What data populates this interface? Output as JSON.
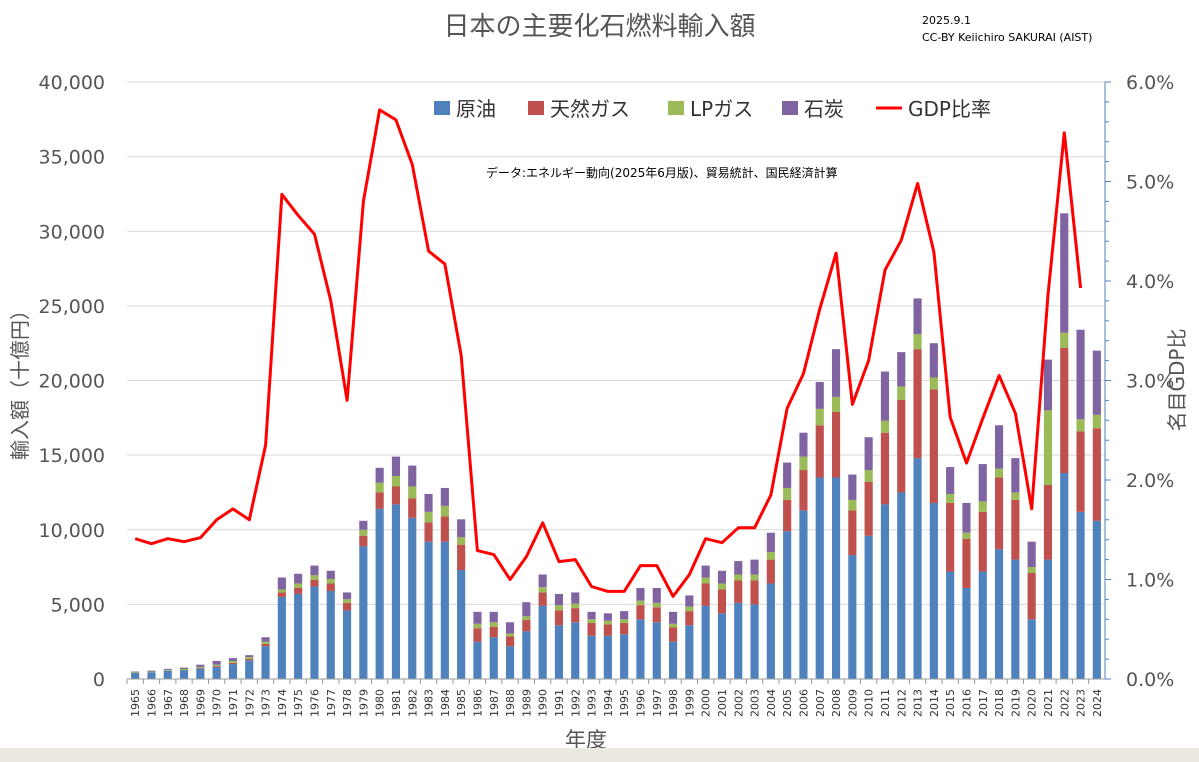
{
  "header": {
    "title": "日本の主要化石燃料輸入額",
    "date": "2025.9.1",
    "license": "CC-BY Keiichiro SAKURAI (AIST)"
  },
  "chart_data": {
    "type": "bar",
    "stacked": true,
    "title": "日本の主要化石燃料輸入額",
    "source_note": "データ:エネルギー動向(2025年6月版)、貿易統計、国民経済計算",
    "xlabel": "年度",
    "ylabel": "輸入額（十億円）",
    "y2label": "名目GDP比",
    "ylim": [
      0,
      40000
    ],
    "y2lim": [
      0,
      6
    ],
    "yticks": [
      "0",
      "5,000",
      "10,000",
      "15,000",
      "20,000",
      "25,000",
      "30,000",
      "35,000",
      "40,000"
    ],
    "y2ticks": [
      "0.0%",
      "1.0%",
      "2.0%",
      "3.0%",
      "4.0%",
      "5.0%",
      "6.0%"
    ],
    "categories": [
      "1965",
      "1966",
      "1967",
      "1968",
      "1969",
      "1970",
      "1971",
      "1972",
      "1973",
      "1974",
      "1975",
      "1976",
      "1977",
      "1978",
      "1979",
      "1980",
      "1981",
      "1982",
      "1983",
      "1984",
      "1985",
      "1986",
      "1987",
      "1988",
      "1989",
      "1990",
      "1991",
      "1992",
      "1993",
      "1994",
      "1995",
      "1996",
      "1997",
      "1998",
      "1999",
      "2000",
      "2001",
      "2002",
      "2003",
      "2004",
      "2005",
      "2006",
      "2007",
      "2008",
      "2009",
      "2010",
      "2011",
      "2012",
      "2013",
      "2014",
      "2015",
      "2016",
      "2017",
      "2018",
      "2019",
      "2020",
      "2021",
      "2022",
      "2023",
      "2024"
    ],
    "series": [
      {
        "name": "原油",
        "type": "bar",
        "color": "#4f81bd",
        "values": [
          400,
          450,
          550,
          600,
          700,
          800,
          1000,
          1250,
          2200,
          5500,
          5700,
          6200,
          5900,
          4600,
          8900,
          11400,
          11700,
          10800,
          9200,
          9200,
          7300,
          2500,
          2800,
          2200,
          3200,
          4900,
          3600,
          3800,
          2900,
          2900,
          3000,
          4000,
          3800,
          2500,
          3600,
          4900,
          4400,
          5100,
          5000,
          6400,
          9900,
          11300,
          13500,
          13500,
          8300,
          9600,
          11700,
          12500,
          14800,
          11800,
          7200,
          6100,
          7200,
          8700,
          8000,
          4000,
          8000,
          13800,
          11200,
          10600
        ]
      },
      {
        "name": "天然ガス",
        "type": "bar",
        "color": "#c0504d",
        "values": [
          0,
          0,
          0,
          0,
          30,
          60,
          80,
          100,
          150,
          300,
          400,
          450,
          500,
          500,
          700,
          1100,
          1200,
          1300,
          1300,
          1700,
          1700,
          900,
          700,
          650,
          750,
          900,
          1000,
          950,
          850,
          750,
          750,
          950,
          1000,
          950,
          950,
          1500,
          1600,
          1500,
          1600,
          1600,
          2100,
          2700,
          3500,
          4400,
          3000,
          3600,
          4800,
          6200,
          7300,
          7600,
          4600,
          3300,
          4000,
          4800,
          4000,
          3100,
          5000,
          8400,
          5400,
          6200
        ]
      },
      {
        "name": "LPガス",
        "type": "bar",
        "color": "#9bbb59",
        "values": [
          50,
          50,
          60,
          70,
          80,
          100,
          120,
          120,
          160,
          200,
          300,
          300,
          300,
          250,
          400,
          650,
          700,
          800,
          700,
          700,
          500,
          300,
          300,
          200,
          250,
          350,
          350,
          300,
          250,
          250,
          250,
          300,
          300,
          250,
          300,
          400,
          400,
          400,
          400,
          500,
          800,
          900,
          1100,
          1000,
          700,
          800,
          800,
          900,
          1000,
          800,
          600,
          400,
          700,
          600,
          500,
          400,
          5000,
          1000,
          800,
          900
        ]
      },
      {
        "name": "石炭",
        "type": "bar",
        "color": "#8064a2",
        "values": [
          50,
          60,
          70,
          90,
          150,
          250,
          200,
          130,
          290,
          800,
          650,
          650,
          550,
          450,
          600,
          1000,
          1300,
          1400,
          1200,
          1200,
          1200,
          800,
          700,
          750,
          950,
          850,
          750,
          750,
          500,
          500,
          550,
          850,
          1000,
          800,
          750,
          800,
          850,
          900,
          1000,
          1300,
          1700,
          1600,
          1800,
          3200,
          1700,
          2200,
          3300,
          2300,
          2400,
          2300,
          1800,
          2000,
          2500,
          2900,
          2300,
          1700,
          3400,
          8000,
          6000,
          4300
        ]
      },
      {
        "name": "GDP比率",
        "type": "line",
        "color": "#ff0000",
        "axis": "secondary",
        "unit": "%",
        "values": [
          1.41,
          1.36,
          1.41,
          1.38,
          1.42,
          1.6,
          1.71,
          1.6,
          2.35,
          4.87,
          4.66,
          4.47,
          3.8,
          2.8,
          4.8,
          5.72,
          5.62,
          5.17,
          4.3,
          4.17,
          3.25,
          1.29,
          1.25,
          1.0,
          1.23,
          1.57,
          1.18,
          1.2,
          0.93,
          0.88,
          0.88,
          1.14,
          1.14,
          0.83,
          1.05,
          1.41,
          1.37,
          1.52,
          1.52,
          1.85,
          2.72,
          3.07,
          3.72,
          4.28,
          2.76,
          3.2,
          4.11,
          4.41,
          4.98,
          4.29,
          2.63,
          2.17,
          2.62,
          3.05,
          2.67,
          1.71,
          3.86,
          5.49,
          3.93,
          null
        ]
      }
    ],
    "legend_position": "top-center"
  }
}
